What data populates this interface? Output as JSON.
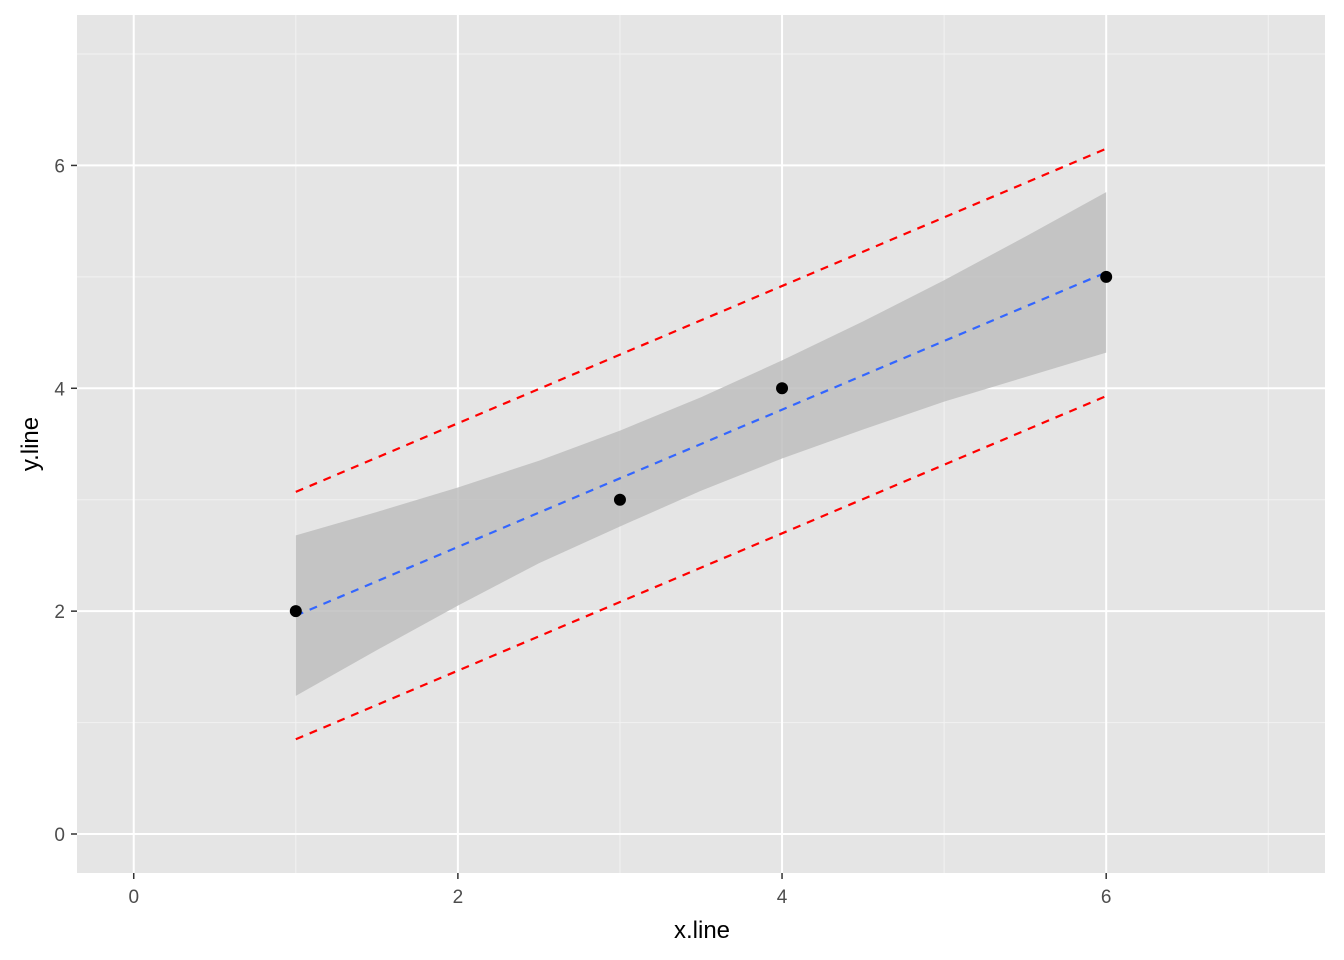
{
  "chart_data": {
    "type": "scatter",
    "xlabel": "x.line",
    "ylabel": "y.line",
    "xlim": [
      -0.35,
      7.35
    ],
    "ylim": [
      -0.35,
      7.35
    ],
    "x_ticks": [
      0,
      2,
      4,
      6
    ],
    "y_ticks": [
      0,
      2,
      4,
      6
    ],
    "x_minor_ticks": [
      1,
      3,
      5,
      7
    ],
    "y_minor_ticks": [
      1,
      3,
      5,
      7
    ],
    "grid": true,
    "points": [
      {
        "x": 1,
        "y": 2
      },
      {
        "x": 3,
        "y": 3
      },
      {
        "x": 4,
        "y": 4
      },
      {
        "x": 6,
        "y": 5
      }
    ],
    "fit_line": {
      "x": [
        1,
        6
      ],
      "y": [
        1.96,
        5.04
      ]
    },
    "confidence_band": {
      "x": [
        1.0,
        1.5,
        2.0,
        2.5,
        3.0,
        3.5,
        4.0,
        4.5,
        5.0,
        5.5,
        6.0
      ],
      "upper": [
        2.68,
        2.89,
        3.11,
        3.35,
        3.62,
        3.92,
        4.25,
        4.6,
        4.97,
        5.36,
        5.76
      ],
      "lower": [
        1.24,
        1.65,
        2.05,
        2.43,
        2.76,
        3.08,
        3.37,
        3.63,
        3.88,
        4.1,
        4.32
      ]
    },
    "prediction_upper": {
      "x": [
        1,
        6
      ],
      "y": [
        3.07,
        6.15
      ]
    },
    "prediction_lower": {
      "x": [
        1,
        6
      ],
      "y": [
        0.85,
        3.93
      ]
    },
    "colors": {
      "panel": "#e5e5e5",
      "grid_major": "#ffffff",
      "grid_minor": "#f2f2f2",
      "points": "#000000",
      "fit_line": "#3366ff",
      "prediction": "#ff0000",
      "band": "#bebebe"
    }
  }
}
